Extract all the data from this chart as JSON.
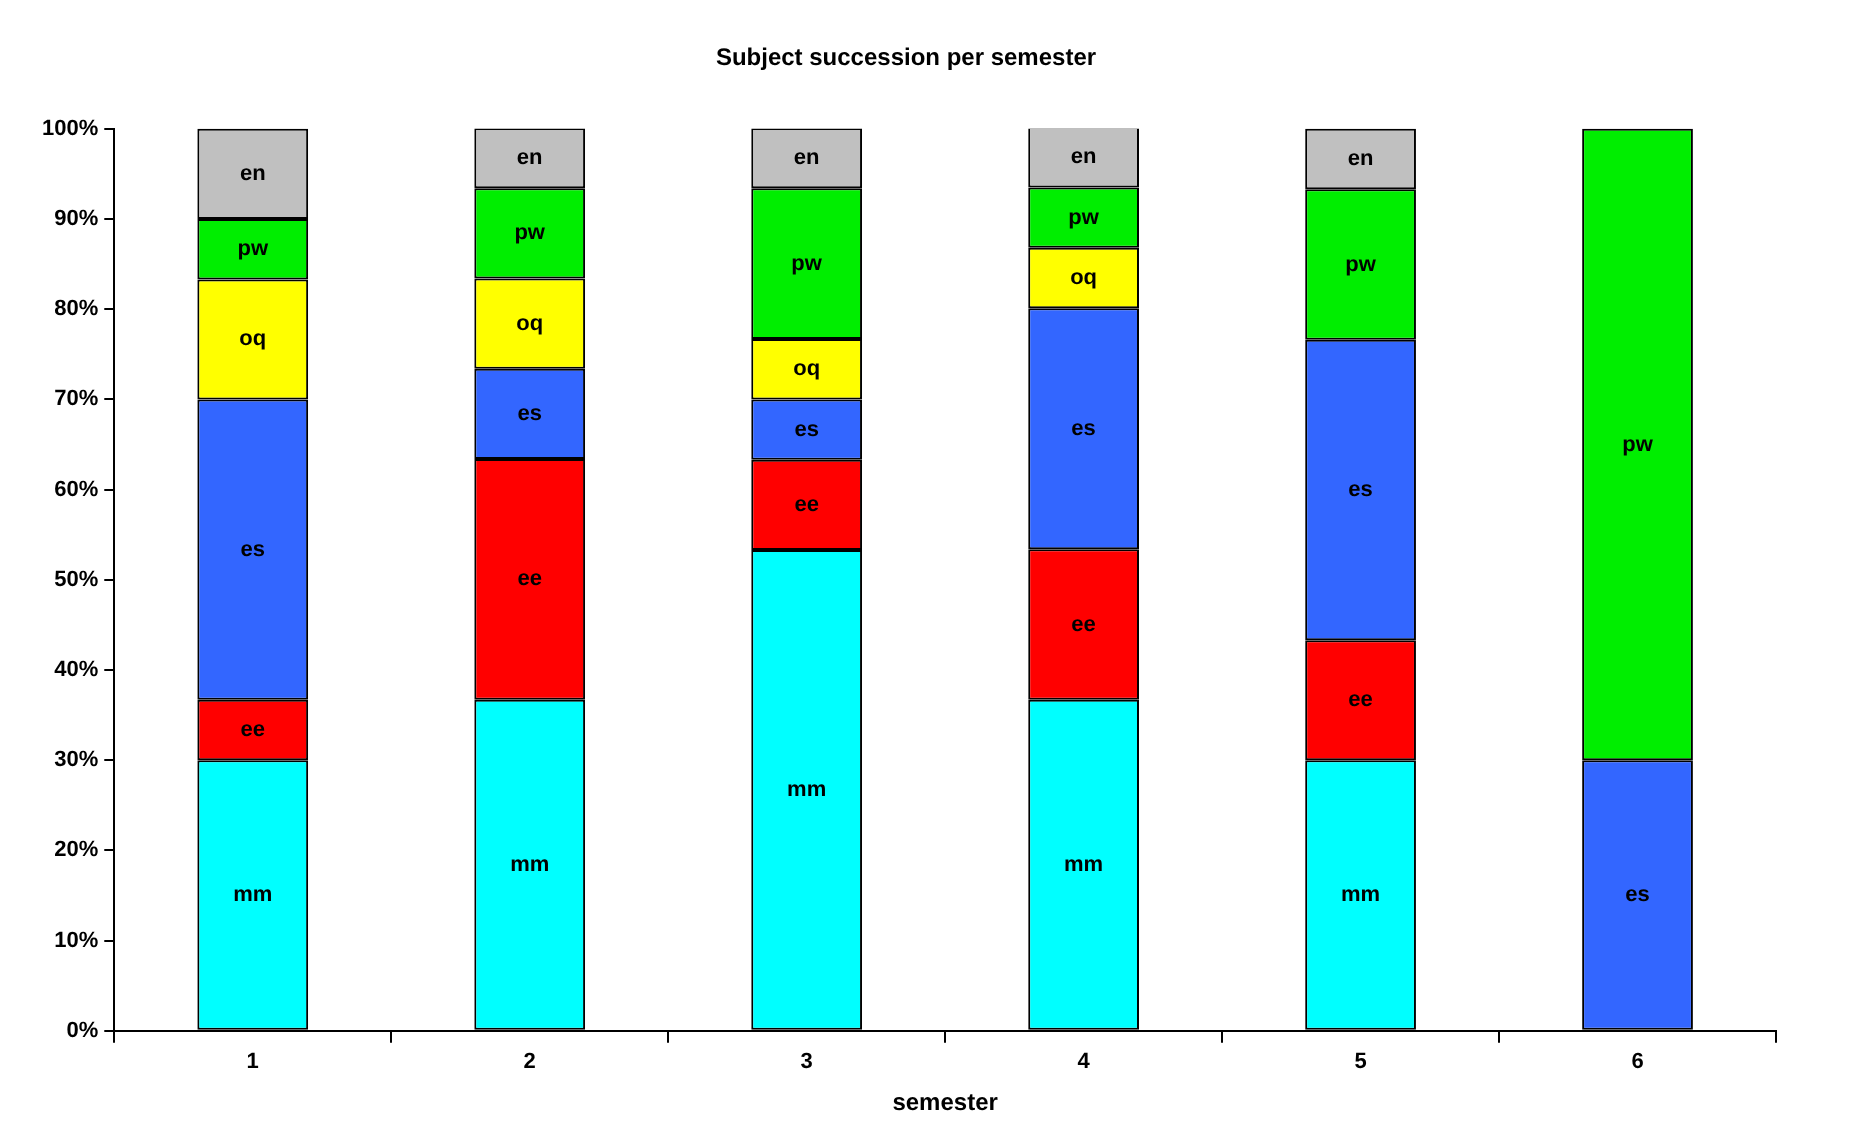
{
  "chart_data": {
    "type": "bar",
    "title": "Subject succession per semester",
    "xlabel": "semester",
    "stacked": true,
    "legend": false,
    "grid": false,
    "categories": [
      "1",
      "2",
      "3",
      "4",
      "5",
      "6"
    ],
    "series": [
      {
        "name": "mm",
        "color": "#00ffff",
        "values": [
          30,
          36.7,
          53.3,
          36.7,
          30,
          null
        ]
      },
      {
        "name": "ee",
        "color": "#ff0000",
        "values": [
          6.7,
          26.7,
          10,
          16.7,
          13.3,
          null
        ]
      },
      {
        "name": "es",
        "color": "#3366ff",
        "values": [
          33.3,
          10,
          6.7,
          26.7,
          33.3,
          30
        ]
      },
      {
        "name": "oq",
        "color": "#ffff00",
        "values": [
          13.3,
          10,
          6.7,
          6.7,
          null,
          null
        ]
      },
      {
        "name": "pw",
        "color": "#00ee00",
        "values": [
          6.7,
          10,
          16.7,
          6.7,
          16.7,
          70
        ]
      },
      {
        "name": "en",
        "color": "#c0c0c0",
        "values": [
          10,
          6.7,
          6.7,
          6.7,
          6.7,
          null
        ]
      }
    ],
    "ylim": [
      0,
      100
    ],
    "yticks": [
      {
        "value": 0,
        "label": "0%"
      },
      {
        "value": 10,
        "label": "10%"
      },
      {
        "value": 20,
        "label": "20%"
      },
      {
        "value": 30,
        "label": "30%"
      },
      {
        "value": 40,
        "label": "40%"
      },
      {
        "value": 50,
        "label": "50%"
      },
      {
        "value": 60,
        "label": "60%"
      },
      {
        "value": 70,
        "label": "70%"
      },
      {
        "value": 80,
        "label": "80%"
      },
      {
        "value": 90,
        "label": "90%"
      },
      {
        "value": 100,
        "label": "100%"
      }
    ]
  }
}
